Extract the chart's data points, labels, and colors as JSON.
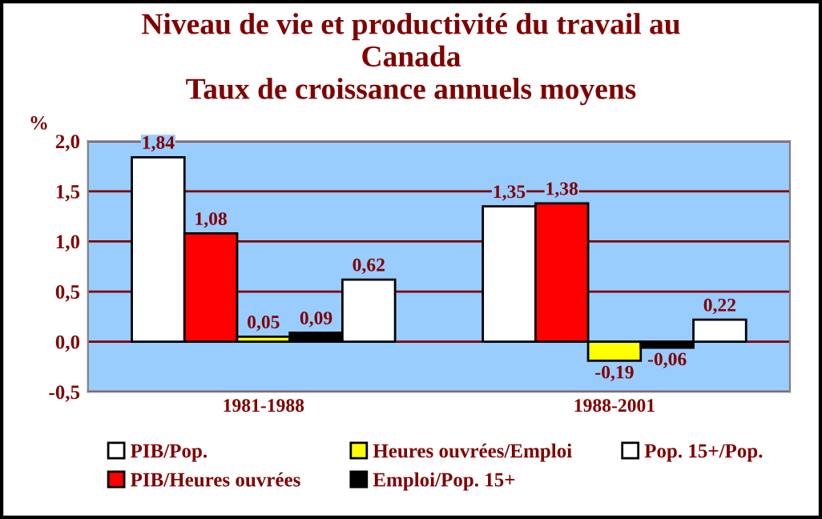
{
  "chart_data": {
    "type": "bar",
    "title": "Niveau de vie et productivité du travail au\nCanada\nTaux de croissance annuels moyens",
    "ylabel": "%",
    "categories": [
      "1981-1988",
      "1988-2001"
    ],
    "series": [
      {
        "name": "PIB/Pop.",
        "color": "#ffffff",
        "values": [
          1.84,
          1.35
        ],
        "value_labels": [
          "1,84",
          "1,35"
        ]
      },
      {
        "name": "PIB/Heures ouvrées",
        "color": "#ff0000",
        "values": [
          1.08,
          1.38
        ],
        "value_labels": [
          "1,08",
          "1,38"
        ]
      },
      {
        "name": "Heures ouvrées/Emploi",
        "color": "#ffff00",
        "values": [
          0.05,
          -0.19
        ],
        "value_labels": [
          "0,05",
          "-0,19"
        ]
      },
      {
        "name": "Emploi/Pop. 15+",
        "color": "#000000",
        "values": [
          0.09,
          -0.06
        ],
        "value_labels": [
          "0,09",
          "-0,06"
        ]
      },
      {
        "name": "Pop. 15+/Pop.",
        "color": "#ffffff",
        "values": [
          0.62,
          0.22
        ],
        "value_labels": [
          "0,62",
          "0,22"
        ]
      }
    ],
    "ylim": [
      -0.5,
      2.0
    ],
    "yticks": [
      {
        "value": -0.5,
        "label": "-0,5"
      },
      {
        "value": 0,
        "label": "0,0"
      },
      {
        "value": 0.5,
        "label": "0,5"
      },
      {
        "value": 1.0,
        "label": "1,0"
      },
      {
        "value": 1.5,
        "label": "1,5"
      },
      {
        "value": 2.0,
        "label": "2,0"
      }
    ],
    "grid": "y",
    "legend": "bottom"
  }
}
